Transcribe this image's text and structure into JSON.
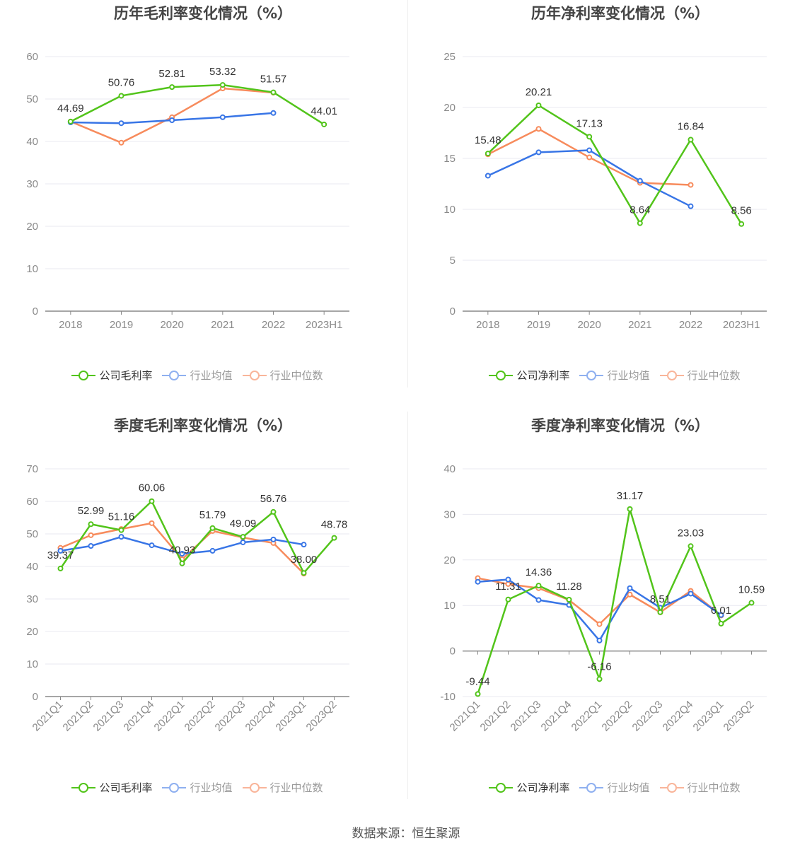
{
  "colors": {
    "company": "#52c41a",
    "avg": "#3875e6",
    "median": "#f78b5c",
    "avg_legend": "#8fb0f0",
    "median_legend": "#f9b59a"
  },
  "source": "数据来源：恒生聚源",
  "chart_data": [
    {
      "type": "line",
      "title": "历年毛利率变化情况（%）",
      "categories": [
        "2018",
        "2019",
        "2020",
        "2021",
        "2022",
        "2023H1"
      ],
      "ylim": [
        0,
        60
      ],
      "yticks": [
        0,
        10,
        20,
        30,
        40,
        50,
        60
      ],
      "legend_position": "bottom",
      "series": [
        {
          "name": "公司毛利率",
          "key": "company",
          "values": [
            44.69,
            50.76,
            52.81,
            53.32,
            51.57,
            44.01
          ],
          "labels": true
        },
        {
          "name": "行业均值",
          "key": "avg",
          "values": [
            44.5,
            44.3,
            45.0,
            45.7,
            46.7,
            null
          ]
        },
        {
          "name": "行业中位数",
          "key": "median",
          "values": [
            44.69,
            39.7,
            45.7,
            52.5,
            51.5,
            null
          ]
        }
      ]
    },
    {
      "type": "line",
      "title": "历年净利率变化情况（%）",
      "categories": [
        "2018",
        "2019",
        "2020",
        "2021",
        "2022",
        "2023H1"
      ],
      "ylim": [
        0,
        25
      ],
      "yticks": [
        0,
        5,
        10,
        15,
        20,
        25
      ],
      "legend_position": "bottom",
      "series": [
        {
          "name": "公司净利率",
          "key": "company",
          "values": [
            15.48,
            20.21,
            17.13,
            8.64,
            16.84,
            8.56
          ],
          "labels": true
        },
        {
          "name": "行业均值",
          "key": "avg",
          "values": [
            13.3,
            15.6,
            15.8,
            12.8,
            10.3,
            null
          ]
        },
        {
          "name": "行业中位数",
          "key": "median",
          "values": [
            15.4,
            17.9,
            15.1,
            12.6,
            12.4,
            null
          ]
        }
      ]
    },
    {
      "type": "line",
      "title": "季度毛利率变化情况（%）",
      "categories": [
        "2021Q1",
        "2021Q2",
        "2021Q3",
        "2021Q4",
        "2022Q1",
        "2022Q2",
        "2022Q3",
        "2022Q4",
        "2023Q1",
        "2023Q2"
      ],
      "ylim": [
        0,
        70
      ],
      "yticks": [
        0,
        10,
        20,
        30,
        40,
        50,
        60,
        70
      ],
      "legend_position": "bottom",
      "series": [
        {
          "name": "公司毛利率",
          "key": "company",
          "values": [
            39.37,
            52.99,
            51.16,
            60.06,
            40.93,
            51.79,
            49.09,
            56.76,
            38.0,
            48.78
          ],
          "labels": true
        },
        {
          "name": "行业均值",
          "key": "avg",
          "values": [
            44.8,
            46.3,
            49.1,
            46.5,
            43.9,
            44.8,
            47.4,
            48.3,
            46.7,
            null
          ]
        },
        {
          "name": "行业中位数",
          "key": "median",
          "values": [
            45.7,
            49.6,
            51.5,
            53.3,
            42.2,
            50.9,
            48.9,
            47.2,
            37.8,
            null
          ]
        }
      ]
    },
    {
      "type": "line",
      "title": "季度净利率变化情况（%）",
      "categories": [
        "2021Q1",
        "2021Q2",
        "2021Q3",
        "2021Q4",
        "2022Q1",
        "2022Q2",
        "2022Q3",
        "2022Q4",
        "2023Q1",
        "2023Q2"
      ],
      "ylim": [
        -10,
        40
      ],
      "yticks": [
        -10,
        0,
        10,
        20,
        30,
        40
      ],
      "legend_position": "bottom",
      "series": [
        {
          "name": "公司净利率",
          "key": "company",
          "values": [
            -9.44,
            11.31,
            14.36,
            11.28,
            -6.16,
            31.17,
            8.51,
            23.03,
            6.01,
            10.59
          ],
          "labels": true
        },
        {
          "name": "行业均值",
          "key": "avg",
          "values": [
            15.2,
            15.7,
            11.2,
            10.1,
            2.3,
            13.8,
            9.5,
            12.6,
            7.9,
            null
          ]
        },
        {
          "name": "行业中位数",
          "key": "median",
          "values": [
            16.0,
            14.7,
            13.8,
            11.2,
            5.9,
            12.4,
            8.5,
            13.2,
            7.8,
            null
          ]
        }
      ]
    }
  ]
}
